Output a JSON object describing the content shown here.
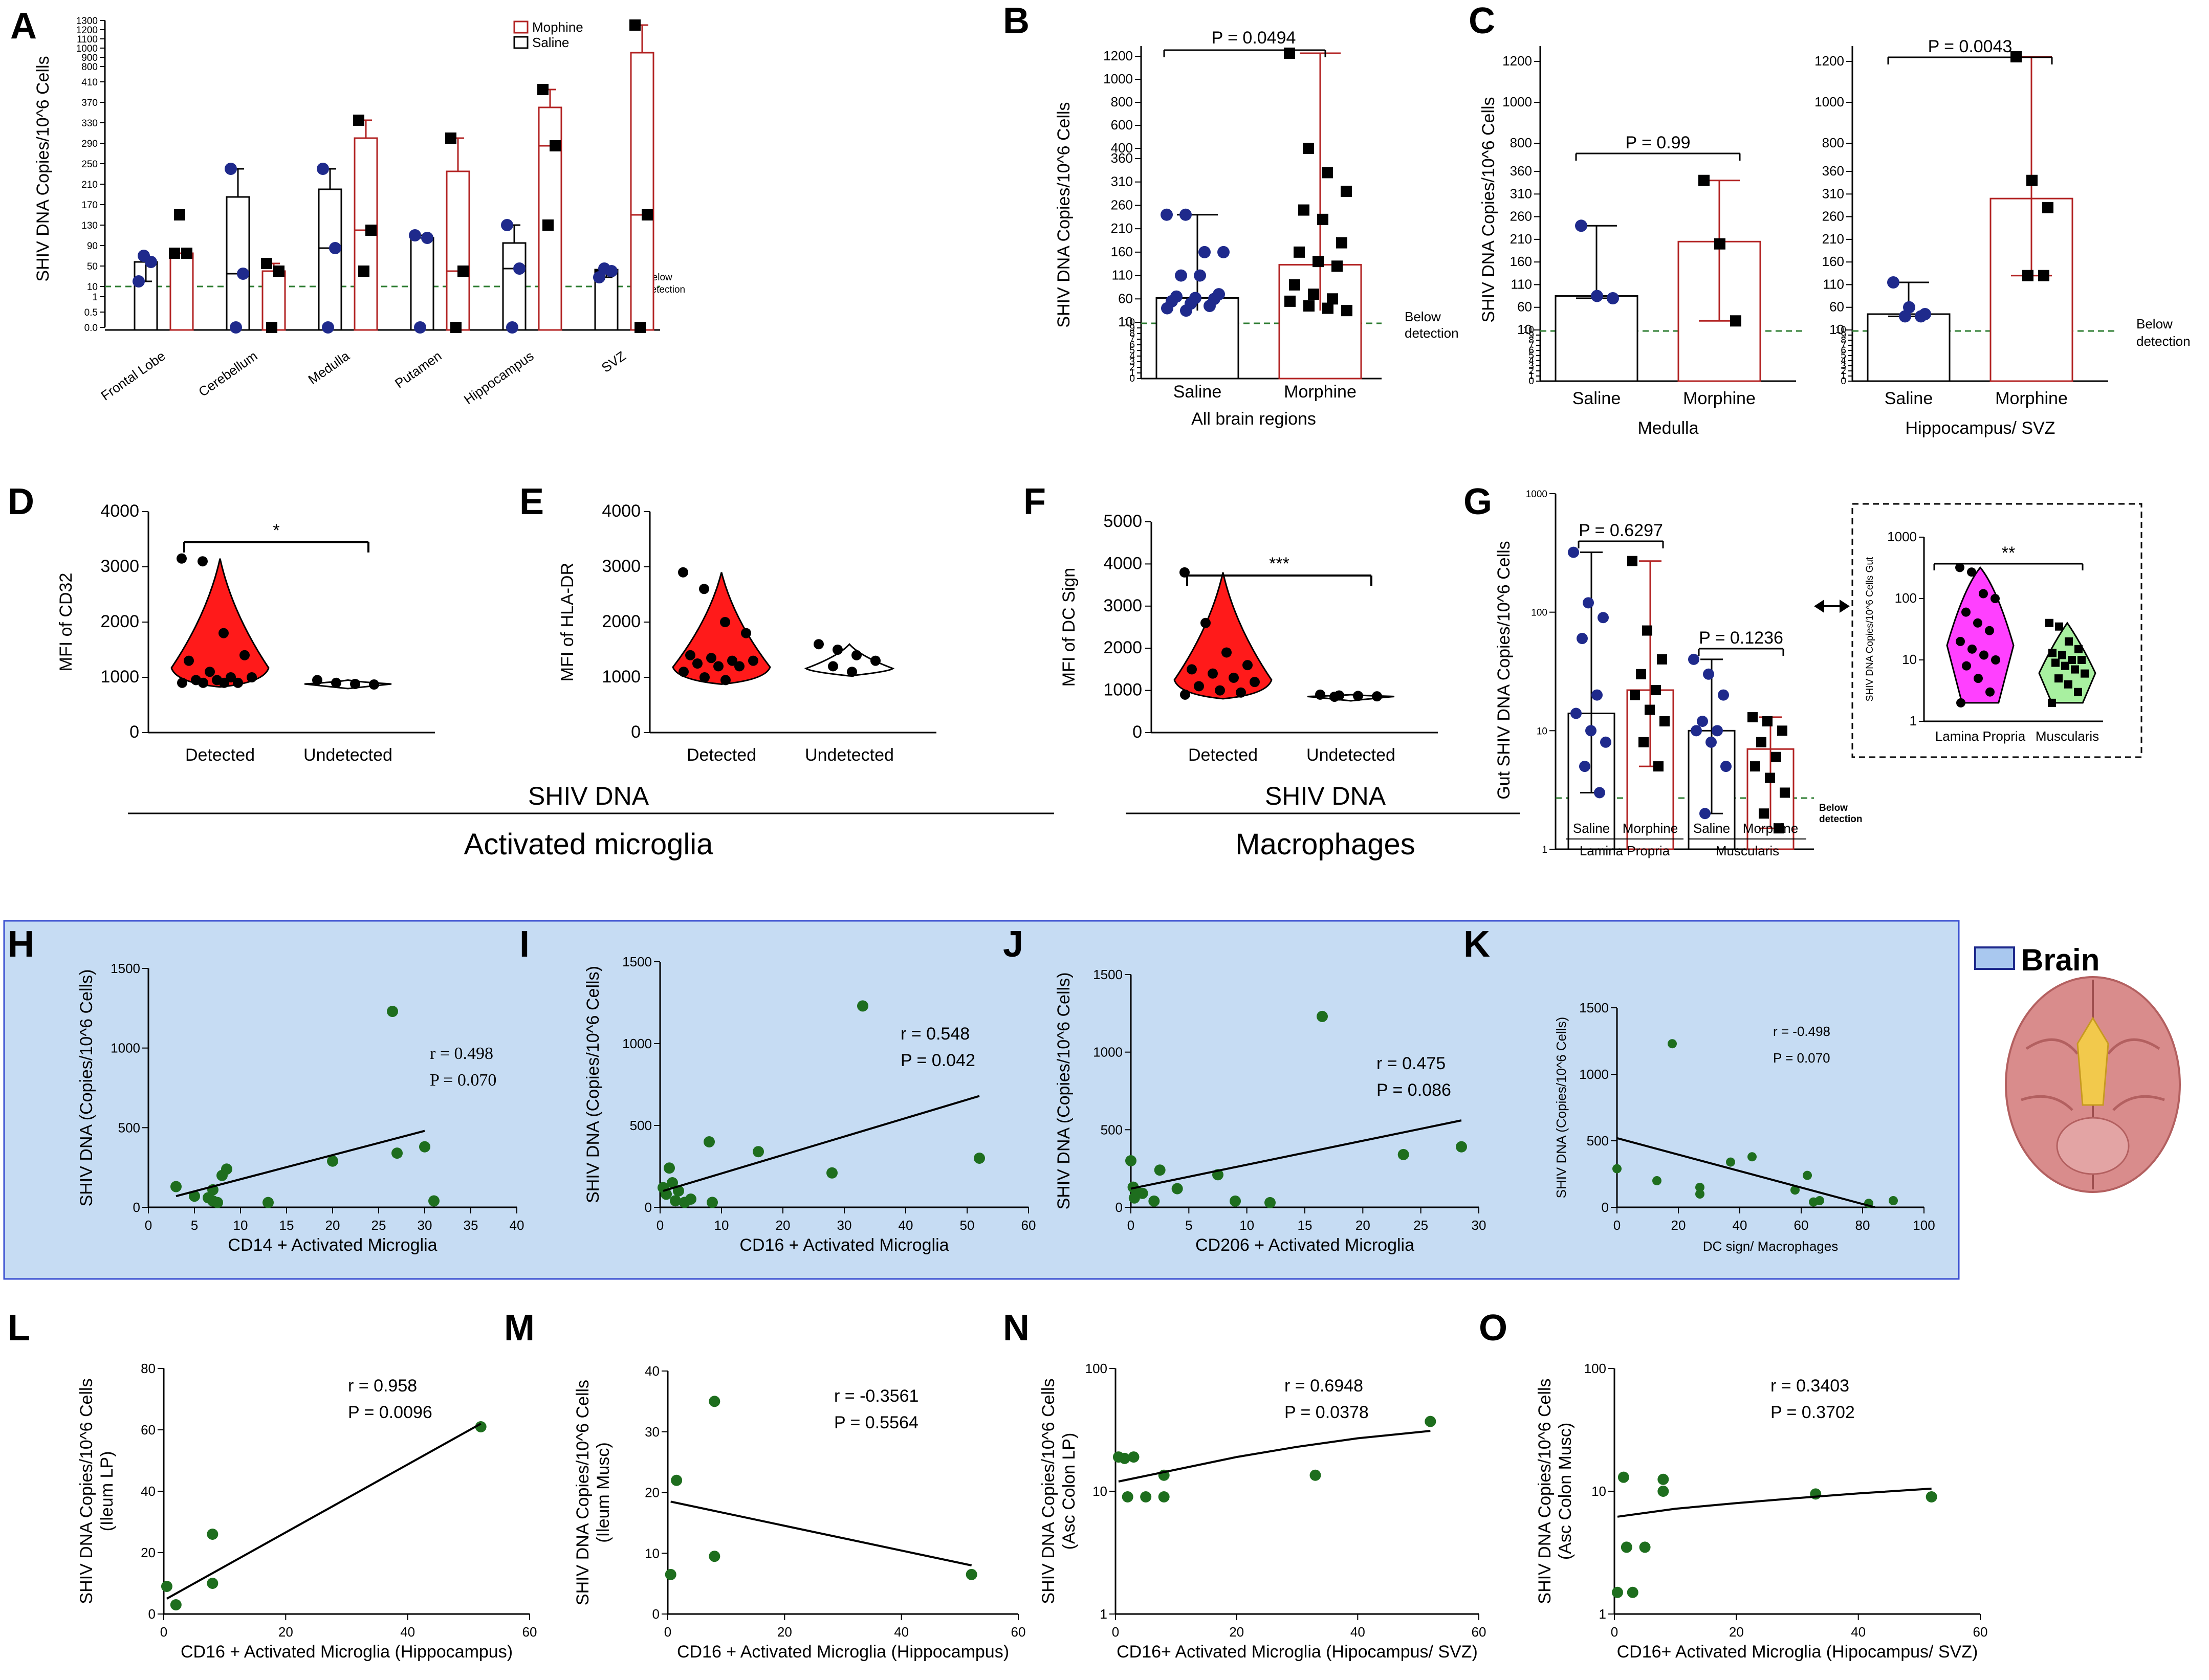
{
  "panel_letters": [
    "A",
    "B",
    "C",
    "D",
    "E",
    "F",
    "G",
    "H",
    "I",
    "J",
    "K",
    "L",
    "M",
    "N",
    "O"
  ],
  "colors": {
    "saline": "#1f2a8c",
    "morphine": "#b22222",
    "violin_red": "#ff1a1a",
    "green": "#1e6e1e",
    "green_threshold": "#2e7d32",
    "brain_bg": "#c6dcf3",
    "magenta": "#ff40ff",
    "light_green": "#a8f0a0"
  },
  "common": {
    "below_detection": "Below detection",
    "below_detection_line1": "Below",
    "below_detection_line2": "detection"
  },
  "chart_data": [
    {
      "panel": "A",
      "type": "bar",
      "ylabel": "SHIV DNA Copies/10^6 Cells",
      "legend": [
        "Mophine",
        "Saline"
      ],
      "categories": [
        "Frontal Lobe",
        "Cerebellum",
        "Medulla",
        "Putamen",
        "Hippocampus",
        "SVZ"
      ],
      "yticks_low": [
        "0.0",
        "0.5",
        "1"
      ],
      "yticks_mid": [
        "10",
        "50",
        "90",
        "130",
        "170",
        "210",
        "250",
        "290",
        "330",
        "370",
        "410"
      ],
      "yticks_top": [
        "800",
        "900",
        "1000",
        "1100",
        "1200",
        "1300"
      ],
      "series": [
        {
          "name": "Saline",
          "bars": [
            58,
            185,
            200,
            105,
            95,
            43
          ],
          "points": [
            [
              20,
              58,
              70
            ],
            [
              240,
              35,
              0
            ],
            [
              240,
              85,
              0
            ],
            [
              110,
              105,
              0
            ],
            [
              130,
              45,
              0
            ],
            [
              28,
              40,
              45
            ]
          ]
        },
        {
          "name": "Mophine",
          "bars": [
            75,
            40,
            300,
            235,
            360,
            950
          ],
          "points": [
            [
              75,
              75,
              150
            ],
            [
              55,
              40,
              0
            ],
            [
              335,
              120,
              40
            ],
            [
              300,
              40,
              0
            ],
            [
              395,
              285,
              130
            ],
            [
              1250,
              150,
              0
            ]
          ]
        }
      ]
    },
    {
      "panel": "B",
      "type": "bar",
      "ylabel": "SHIV DNA Copies/10^6 Cells",
      "categories": [
        "Saline",
        "Morphine"
      ],
      "xlabel": "All brain regions",
      "p_value": "P = 0.0494",
      "yticks_top": [
        "400",
        "600",
        "800",
        "1000",
        "1200"
      ],
      "yticks_mid": [
        "10",
        "60",
        "110",
        "160",
        "210",
        "260",
        "310",
        "360"
      ],
      "yticks_low": [
        "0",
        "1",
        "2",
        "3",
        "4",
        "5",
        "6",
        "7",
        "8",
        "9",
        "10"
      ],
      "bars": [
        62,
        133
      ],
      "saline_points": [
        240,
        240,
        160,
        160,
        110,
        110,
        70,
        65,
        62,
        60,
        55,
        50,
        45,
        40,
        35
      ],
      "morphine_points": [
        1230,
        400,
        330,
        290,
        250,
        230,
        180,
        160,
        140,
        130,
        90,
        70,
        60,
        55,
        45,
        40,
        35
      ]
    },
    {
      "panel": "C",
      "type": "bar",
      "ylabel": "SHIV DNA Copies/10^6 Cells",
      "subplots": [
        {
          "xlabel": "Medulla",
          "categories": [
            "Saline",
            "Morphine"
          ],
          "p_value": "P = 0.99",
          "bars": [
            85,
            205
          ],
          "saline_points": [
            240,
            85,
            80
          ],
          "morphine_points": [
            340,
            200,
            30
          ]
        },
        {
          "xlabel": "Hippocampus/ SVZ",
          "categories": [
            "Saline",
            "Morphine"
          ],
          "p_value": "P = 0.0043",
          "bars": [
            45,
            300
          ],
          "saline_points": [
            115,
            60,
            45,
            40,
            40
          ],
          "morphine_points": [
            1230,
            340,
            280,
            130,
            130
          ]
        }
      ],
      "yticks_top": [
        "800",
        "1000",
        "1200"
      ],
      "yticks_mid": [
        "10",
        "60",
        "110",
        "160",
        "210",
        "260",
        "310",
        "360"
      ],
      "yticks_low": [
        "0",
        "1",
        "2",
        "3",
        "4",
        "5",
        "6",
        "7",
        "8",
        "9",
        "10"
      ]
    },
    {
      "panel": "D",
      "type": "violin",
      "ylabel": "MFI of CD32",
      "categories": [
        "Detected",
        "Undetected"
      ],
      "yticks": [
        "0",
        "1000",
        "2000",
        "3000",
        "4000"
      ],
      "significance": "*",
      "detected_points": [
        3150,
        3100,
        1800,
        1400,
        1300,
        1100,
        1000,
        1000,
        950,
        950,
        900,
        900,
        900,
        900
      ],
      "undetected_points": [
        950,
        900,
        880,
        870
      ]
    },
    {
      "panel": "E",
      "type": "violin",
      "ylabel": "MFI of HLA-DR",
      "categories": [
        "Detected",
        "Undetected"
      ],
      "yticks": [
        "0",
        "1000",
        "2000",
        "3000",
        "4000"
      ],
      "detected_points": [
        2900,
        2600,
        2000,
        1800,
        1400,
        1350,
        1300,
        1300,
        1250,
        1200,
        1200,
        1100,
        1000,
        950
      ],
      "undetected_points": [
        1600,
        1500,
        1400,
        1300,
        1200,
        1100
      ]
    },
    {
      "panel": "F",
      "type": "violin",
      "ylabel": "MFI of DC Sign",
      "categories": [
        "Detected",
        "Undetected"
      ],
      "yticks": [
        "0",
        "1000",
        "2000",
        "3000",
        "4000",
        "5000"
      ],
      "significance": "***",
      "detected_points": [
        3800,
        2600,
        1900,
        1600,
        1500,
        1400,
        1300,
        1200,
        1100,
        1000,
        950,
        900
      ],
      "undetected_points": [
        900,
        880,
        870,
        860,
        850
      ]
    },
    {
      "panel": "G",
      "type": "bar",
      "ylabel": "Gut SHIV DNA Copies/10^6 Cells",
      "yticks": [
        "1",
        "10",
        "100",
        "1000"
      ],
      "yscale": "log",
      "categories": [
        "Saline",
        "Morphine",
        "Saline",
        "Morphine"
      ],
      "groups": [
        "Lamina Propria",
        "Muscularis"
      ],
      "p_values": [
        "P = 0.6297",
        "P = 0.1236"
      ],
      "bars": [
        14,
        22,
        10,
        7
      ],
      "points": [
        [
          320,
          120,
          90,
          60,
          20,
          14,
          10,
          8,
          5,
          3
        ],
        [
          270,
          70,
          40,
          30,
          22,
          20,
          15,
          12,
          8,
          5
        ],
        [
          40,
          30,
          20,
          12,
          10,
          10,
          8,
          5,
          2
        ],
        [
          13,
          12,
          10,
          8,
          6,
          5,
          4,
          3,
          2,
          1.5
        ]
      ],
      "inset": {
        "ylabel": "SHIV DNA Copies/10^6 Cells Gut",
        "categories": [
          "Lamina Propria",
          "Muscularis"
        ],
        "yticks": [
          "1",
          "10",
          "100",
          "1000"
        ],
        "significance": "**",
        "lp_points": [
          320,
          270,
          120,
          100,
          60,
          40,
          30,
          20,
          15,
          12,
          10,
          8,
          5,
          3,
          2
        ],
        "mu_points": [
          40,
          35,
          20,
          15,
          13,
          12,
          10,
          10,
          9,
          8,
          7,
          6,
          5,
          4,
          3,
          2
        ]
      }
    },
    {
      "panel": "H",
      "type": "scatter",
      "ylabel": "SHIV DNA (Copies/10^6 Cells)",
      "xlabel": "CD14 + Activated Microglia",
      "xlim": [
        0,
        40
      ],
      "ylim": [
        0,
        1500
      ],
      "xticks": [
        "0",
        "5",
        "10",
        "15",
        "20",
        "25",
        "30",
        "35",
        "40"
      ],
      "yticks": [
        "0",
        "500",
        "1000",
        "1500"
      ],
      "r": "r = 0.498",
      "p": "P = 0.070",
      "points": [
        [
          3,
          130
        ],
        [
          5,
          70
        ],
        [
          6.5,
          60
        ],
        [
          7,
          110
        ],
        [
          7,
          40
        ],
        [
          7.5,
          30
        ],
        [
          8,
          200
        ],
        [
          8.5,
          240
        ],
        [
          13,
          30
        ],
        [
          20,
          290
        ],
        [
          26.5,
          1230
        ],
        [
          27,
          340
        ],
        [
          30,
          380
        ],
        [
          31,
          40
        ]
      ],
      "fit": [
        [
          3,
          70
        ],
        [
          30,
          480
        ]
      ]
    },
    {
      "panel": "I",
      "type": "scatter",
      "ylabel": "SHIV DNA (Copies/10^6 Cells)",
      "xlabel": "CD16 + Activated Microglia",
      "xlim": [
        0,
        60
      ],
      "ylim": [
        0,
        1500
      ],
      "xticks": [
        "0",
        "10",
        "20",
        "30",
        "40",
        "50",
        "60"
      ],
      "yticks": [
        "0",
        "500",
        "1000",
        "1500"
      ],
      "r": "r = 0.548",
      "p": "P = 0.042",
      "points": [
        [
          0.5,
          120
        ],
        [
          1,
          80
        ],
        [
          1.5,
          240
        ],
        [
          2,
          150
        ],
        [
          2.5,
          40
        ],
        [
          3,
          100
        ],
        [
          4,
          30
        ],
        [
          5,
          50
        ],
        [
          8,
          400
        ],
        [
          8.5,
          30
        ],
        [
          16,
          340
        ],
        [
          28,
          210
        ],
        [
          33,
          1230
        ],
        [
          52,
          300
        ]
      ],
      "fit": [
        [
          0.5,
          100
        ],
        [
          52,
          680
        ]
      ]
    },
    {
      "panel": "J",
      "type": "scatter",
      "ylabel": "SHIV DNA (Copies/10^6 Cells)",
      "xlabel": "CD206 + Activated Microglia",
      "xlim": [
        0,
        30
      ],
      "ylim": [
        0,
        1500
      ],
      "xticks": [
        "0",
        "5",
        "10",
        "15",
        "20",
        "25",
        "30"
      ],
      "yticks": [
        "0",
        "500",
        "1000",
        "1500"
      ],
      "r": "r = 0.475",
      "p": "P = 0.086",
      "points": [
        [
          0,
          300
        ],
        [
          0.2,
          130
        ],
        [
          0.3,
          60
        ],
        [
          0.5,
          100
        ],
        [
          1,
          90
        ],
        [
          2,
          40
        ],
        [
          2.5,
          240
        ],
        [
          4,
          120
        ],
        [
          7.5,
          210
        ],
        [
          9,
          40
        ],
        [
          12,
          30
        ],
        [
          16.5,
          1230
        ],
        [
          23.5,
          340
        ],
        [
          28.5,
          390
        ]
      ],
      "fit": [
        [
          0,
          120
        ],
        [
          28.5,
          560
        ]
      ]
    },
    {
      "panel": "K",
      "type": "scatter",
      "ylabel": "SHIV DNA (Copies/10^6 Cells)",
      "xlabel": "DC sign/ Macrophages",
      "xlim": [
        0,
        100
      ],
      "ylim": [
        0,
        1500
      ],
      "xticks": [
        "0",
        "20",
        "40",
        "60",
        "80",
        "100"
      ],
      "yticks": [
        "0",
        "500",
        "1000",
        "1500"
      ],
      "r": "r = -0.498",
      "p": "P = 0.070",
      "points": [
        [
          0,
          290
        ],
        [
          13,
          200
        ],
        [
          18,
          1230
        ],
        [
          27,
          100
        ],
        [
          27,
          150
        ],
        [
          37,
          340
        ],
        [
          44,
          380
        ],
        [
          58,
          130
        ],
        [
          62,
          240
        ],
        [
          64,
          40
        ],
        [
          66,
          50
        ],
        [
          82,
          30
        ],
        [
          90,
          50
        ]
      ],
      "fit": [
        [
          0,
          520
        ],
        [
          84,
          0
        ]
      ]
    },
    {
      "panel": "L",
      "type": "scatter",
      "ylabel": "SHIV DNA Copies/10^6 Cells",
      "ylabel2": "(Ileum LP)",
      "xlabel": "CD16 + Activated Microglia (Hippocampus)",
      "xlim": [
        0,
        60
      ],
      "ylim": [
        0,
        80
      ],
      "xticks": [
        "0",
        "20",
        "40",
        "60"
      ],
      "yticks": [
        "0",
        "20",
        "40",
        "60",
        "80"
      ],
      "r": "r = 0.958",
      "p": "P = 0.0096",
      "points": [
        [
          0.5,
          9
        ],
        [
          2,
          3
        ],
        [
          8,
          10
        ],
        [
          8,
          26
        ],
        [
          52,
          61
        ]
      ],
      "fit": [
        [
          0.5,
          5
        ],
        [
          52,
          62
        ]
      ]
    },
    {
      "panel": "M",
      "type": "scatter",
      "ylabel": "SHIV DNA Copies/10^6 Cells",
      "ylabel2": "(Ileum Musc)",
      "xlabel": "CD16 + Activated Microglia (Hippocampus)",
      "xlim": [
        0,
        60
      ],
      "ylim": [
        0,
        40
      ],
      "xticks": [
        "0",
        "20",
        "40",
        "60"
      ],
      "yticks": [
        "0",
        "10",
        "20",
        "30",
        "40"
      ],
      "r": "r = -0.3561",
      "p": "P = 0.5564",
      "points": [
        [
          0.5,
          6.5
        ],
        [
          1.5,
          22
        ],
        [
          8,
          9.5
        ],
        [
          8,
          35
        ],
        [
          52,
          6.5
        ]
      ],
      "fit": [
        [
          0.5,
          18.5
        ],
        [
          52,
          8
        ]
      ]
    },
    {
      "panel": "N",
      "type": "scatter",
      "ylabel": "SHIV DNA Copies/10^6 Cells",
      "ylabel2": "(Asc Colon LP)",
      "xlabel": "CD16+ Activated Microglia (Hipocampus/ SVZ)",
      "xlim": [
        0,
        60
      ],
      "ylim": [
        1,
        100
      ],
      "yscale": "log",
      "xticks": [
        "0",
        "20",
        "40",
        "60"
      ],
      "yticks": [
        "1",
        "10",
        "100"
      ],
      "r": "r = 0.6948",
      "p": "P = 0.0378",
      "points": [
        [
          0.5,
          19
        ],
        [
          1.5,
          18.5
        ],
        [
          2,
          9
        ],
        [
          3,
          19
        ],
        [
          5,
          9
        ],
        [
          8,
          13.5
        ],
        [
          8,
          9
        ],
        [
          33,
          13.5
        ],
        [
          52,
          37
        ]
      ],
      "fit": [
        [
          0.5,
          12
        ],
        [
          10,
          15
        ],
        [
          20,
          19
        ],
        [
          30,
          23
        ],
        [
          40,
          27
        ],
        [
          52,
          31
        ]
      ]
    },
    {
      "panel": "O",
      "type": "scatter",
      "ylabel": "SHIV DNA Copies/10^6 Cells",
      "ylabel2": "(Asc Colon Musc)",
      "xlabel": "CD16+ Activated Microglia (Hipocampus/ SVZ)",
      "xlim": [
        0,
        60
      ],
      "ylim": [
        1,
        100
      ],
      "yscale": "log",
      "xticks": [
        "0",
        "20",
        "40",
        "60"
      ],
      "yticks": [
        "1",
        "10",
        "100"
      ],
      "r": "r = 0.3403",
      "p": "P = 0.3702",
      "points": [
        [
          0.5,
          1.5
        ],
        [
          1.5,
          13
        ],
        [
          2,
          3.5
        ],
        [
          3,
          1.5
        ],
        [
          5,
          3.5
        ],
        [
          8,
          12.5
        ],
        [
          8,
          10
        ],
        [
          33,
          9.5
        ],
        [
          52,
          9
        ]
      ],
      "fit": [
        [
          0.5,
          6.2
        ],
        [
          10,
          7.2
        ],
        [
          20,
          8
        ],
        [
          30,
          8.8
        ],
        [
          40,
          9.6
        ],
        [
          52,
          10.5
        ]
      ]
    }
  ],
  "group_labels": {
    "shiv_dna_de": "SHIV DNA",
    "shiv_dna_f": "SHIV DNA",
    "activated_microglia": "Activated microglia",
    "macrophages": "Macrophages"
  },
  "brain_legend": "Brain"
}
